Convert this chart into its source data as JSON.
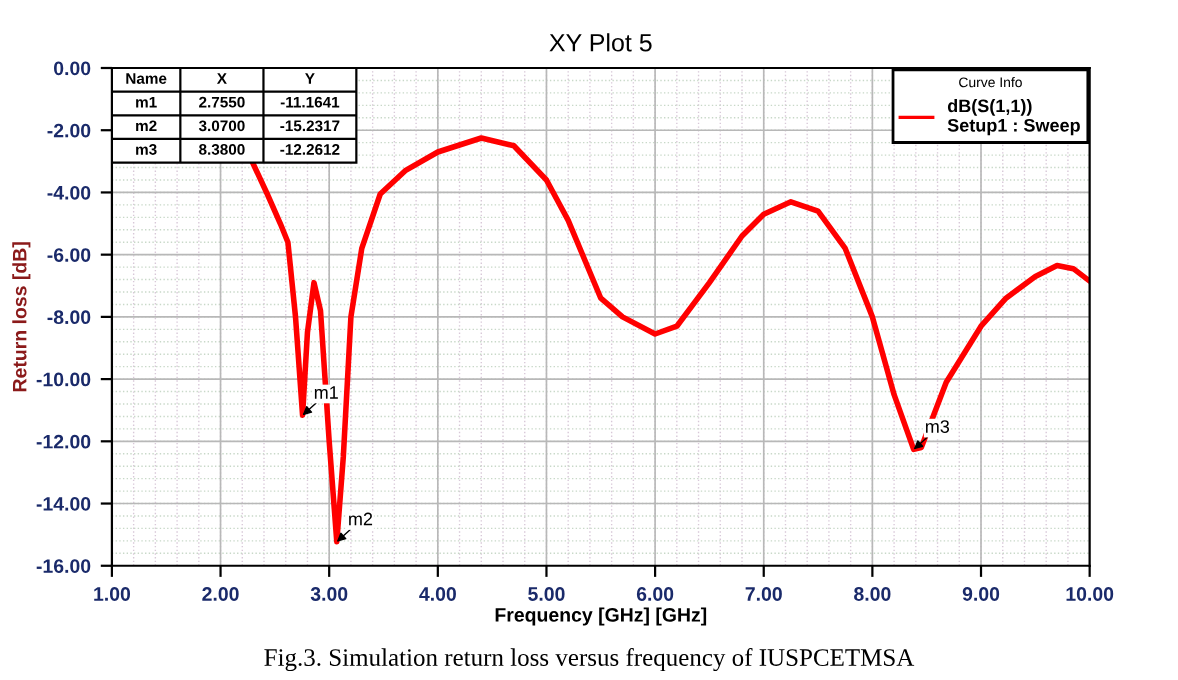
{
  "chart_data": {
    "type": "line",
    "title": "XY Plot 5",
    "xlabel": "Frequency [GHz] [GHz]",
    "ylabel": "Return loss [dB]",
    "legend_title": "Curve Info",
    "x": [
      2.29,
      2.43,
      2.55,
      2.62,
      2.69,
      2.755,
      2.8,
      2.86,
      2.92,
      3.0,
      3.07,
      3.13,
      3.2,
      3.3,
      3.47,
      3.7,
      4.0,
      4.4,
      4.7,
      5.0,
      5.2,
      5.5,
      5.7,
      6.0,
      6.2,
      6.5,
      6.8,
      7.0,
      7.25,
      7.5,
      7.75,
      8.0,
      8.2,
      8.38,
      8.45,
      8.68,
      9.0,
      9.23,
      9.5,
      9.7,
      9.85,
      10.0
    ],
    "series": [
      {
        "name": "dB(S(1,1))\nSetup1 : Sweep",
        "color": "#ff0000",
        "values": [
          -3.0,
          -4.05,
          -5.0,
          -5.6,
          -8.0,
          -11.16,
          -8.5,
          -6.9,
          -7.8,
          -12.0,
          -15.23,
          -12.5,
          -8.0,
          -5.8,
          -4.05,
          -3.3,
          -2.7,
          -2.25,
          -2.5,
          -3.6,
          -4.9,
          -7.4,
          -8.0,
          -8.55,
          -8.3,
          -6.9,
          -5.4,
          -4.7,
          -4.3,
          -4.6,
          -5.8,
          -8.0,
          -10.5,
          -12.26,
          -12.2,
          -10.1,
          -8.3,
          -7.4,
          -6.7,
          -6.35,
          -6.45,
          -6.85
        ]
      }
    ],
    "xlim": [
      1.0,
      10.0
    ],
    "xticks": [
      {
        "value": 1,
        "label": "1.00"
      },
      {
        "value": 2,
        "label": "2.00"
      },
      {
        "value": 3,
        "label": "3.00"
      },
      {
        "value": 4,
        "label": "4.00"
      },
      {
        "value": 5,
        "label": "5.00"
      },
      {
        "value": 6,
        "label": "6.00"
      },
      {
        "value": 7,
        "label": "7.00"
      },
      {
        "value": 8,
        "label": "8.00"
      },
      {
        "value": 9,
        "label": "9.00"
      },
      {
        "value": 10,
        "label": "10.00"
      }
    ],
    "ylim": [
      -16.0,
      0.0
    ],
    "yticks": [
      {
        "value": -16,
        "label": "-16.00"
      },
      {
        "value": -14,
        "label": "-14.00"
      },
      {
        "value": -12,
        "label": "-12.00"
      },
      {
        "value": -10,
        "label": "-10.00"
      },
      {
        "value": -8,
        "label": "-8.00"
      },
      {
        "value": -6,
        "label": "-6.00"
      },
      {
        "value": -4,
        "label": "-4.00"
      },
      {
        "value": -2,
        "label": "-2.00"
      },
      {
        "value": 0,
        "label": "0.00"
      }
    ],
    "grid": true,
    "legend": "top right",
    "marker": "none",
    "line_style": "solid",
    "annotations": [
      {
        "text": "m1",
        "x": 2.755,
        "y": -11.1641
      },
      {
        "text": "m2",
        "x": 3.07,
        "y": -15.2317
      },
      {
        "text": "m3",
        "x": 8.38,
        "y": -12.2612
      },
      "Fig.3. Simulation return loss versus frequency of IUSPCETMSA",
      "Name",
      "X",
      "Y",
      "m1",
      "2.7550",
      "-11.1641",
      "m2",
      "3.0700",
      "-15.2317",
      "m3",
      "8.3800",
      "-12.2612"
    ]
  }
}
